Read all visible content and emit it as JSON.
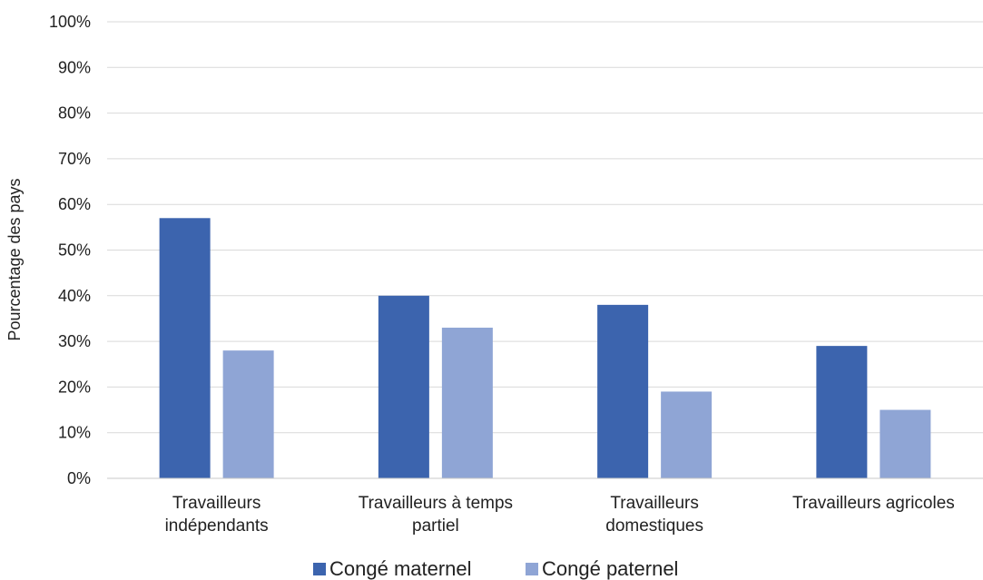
{
  "chart_data": {
    "type": "bar",
    "categories": [
      [
        "Travailleurs",
        "indépendants"
      ],
      [
        "Travailleurs à temps",
        "partiel"
      ],
      [
        "Travailleurs",
        "domestiques"
      ],
      [
        "Travailleurs agricoles"
      ]
    ],
    "series": [
      {
        "name": "Congé maternel",
        "values": [
          57,
          40,
          38,
          29
        ],
        "color": "#3c64ae"
      },
      {
        "name": "Congé paternel",
        "values": [
          28,
          33,
          19,
          15
        ],
        "color": "#8fa5d5"
      }
    ],
    "ylabel": "Pourcentage des pays",
    "ylim": [
      0,
      100
    ],
    "yticks": [
      "0%",
      "10%",
      "20%",
      "30%",
      "40%",
      "50%",
      "60%",
      "70%",
      "80%",
      "90%",
      "100%"
    ],
    "grid": true,
    "legend": "bottom-center"
  }
}
